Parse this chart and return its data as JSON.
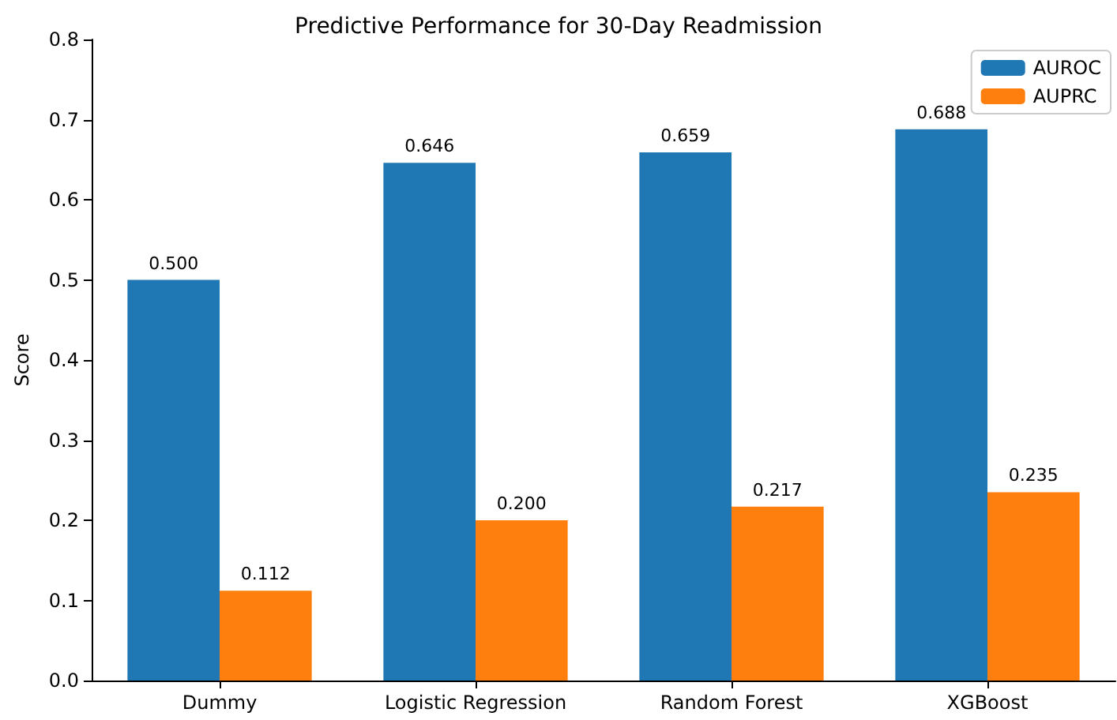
{
  "chart_data": {
    "type": "bar",
    "title": "Predictive Performance for 30-Day Readmission",
    "ylabel": "Score",
    "categories": [
      "Dummy",
      "Logistic Regression",
      "Random Forest",
      "XGBoost"
    ],
    "series": [
      {
        "name": "AUROC",
        "color": "#1f77b4",
        "values": [
          0.5,
          0.646,
          0.659,
          0.688
        ],
        "value_labels": [
          "0.500",
          "0.646",
          "0.659",
          "0.688"
        ]
      },
      {
        "name": "AUPRC",
        "color": "#ff7f0e",
        "values": [
          0.112,
          0.2,
          0.217,
          0.235
        ],
        "value_labels": [
          "0.112",
          "0.200",
          "0.217",
          "0.235"
        ]
      }
    ],
    "ylim": [
      0,
      0.8
    ],
    "yticks": [
      {
        "value": 0,
        "label": "0.0"
      },
      0.1,
      0.2,
      0.3,
      0.4,
      0.5,
      0.6,
      0.7,
      0.8
    ],
    "legend": "top right",
    "grid": false
  }
}
